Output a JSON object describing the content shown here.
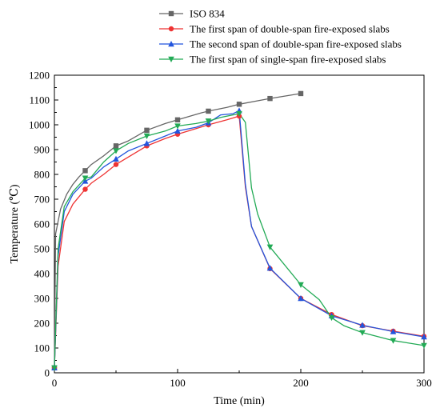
{
  "chart_data": {
    "type": "line",
    "title": "",
    "xlabel": "Time (min)",
    "ylabel": "Temperature (℃)",
    "xlim": [
      0,
      300
    ],
    "ylim": [
      0,
      1200
    ],
    "xticks": [
      0,
      100,
      200,
      300
    ],
    "yticks": [
      0,
      100,
      200,
      300,
      400,
      500,
      600,
      700,
      800,
      900,
      1000,
      1100,
      1200
    ],
    "grid": false,
    "legend_position": "top-right, above plot",
    "series": [
      {
        "name": "ISO 834",
        "color": "#666666",
        "marker": "square",
        "x": [
          0,
          1,
          5,
          10,
          15,
          20,
          25,
          30,
          40,
          50,
          60,
          75,
          90,
          100,
          120,
          125,
          140,
          150,
          175,
          200
        ],
        "y": [
          20,
          560,
          660,
          720,
          760,
          790,
          815,
          840,
          875,
          915,
          935,
          978,
          1005,
          1020,
          1049,
          1055,
          1070,
          1083,
          1106,
          1126
        ],
        "marker_x": [
          0,
          25,
          50,
          75,
          100,
          125,
          150,
          175,
          200
        ],
        "marker_y": [
          20,
          815,
          915,
          978,
          1020,
          1055,
          1083,
          1106,
          1126
        ]
      },
      {
        "name": "The first span of double-span fire-exposed slabs",
        "color": "#ee3333",
        "marker": "circle",
        "x": [
          0,
          3,
          8,
          15,
          25,
          30,
          40,
          50,
          60,
          75,
          90,
          100,
          115,
          125,
          140,
          150,
          155,
          160,
          175,
          200,
          225,
          250,
          275,
          300
        ],
        "y": [
          20,
          430,
          610,
          680,
          740,
          765,
          800,
          840,
          870,
          915,
          945,
          962,
          985,
          1000,
          1020,
          1035,
          750,
          590,
          420,
          300,
          235,
          190,
          168,
          147
        ],
        "marker_x": [
          0,
          25,
          50,
          75,
          100,
          125,
          150,
          175,
          200,
          225,
          250,
          275,
          300
        ],
        "marker_y": [
          20,
          740,
          840,
          915,
          962,
          1000,
          1035,
          420,
          300,
          235,
          190,
          168,
          147
        ]
      },
      {
        "name": "The second span of double-span fire-exposed slabs",
        "color": "#2255dd",
        "marker": "triangle-up",
        "x": [
          0,
          3,
          8,
          15,
          25,
          30,
          40,
          50,
          60,
          75,
          90,
          100,
          115,
          125,
          135,
          145,
          150,
          155,
          160,
          175,
          200,
          225,
          250,
          275,
          300
        ],
        "y": [
          20,
          470,
          650,
          720,
          773,
          785,
          830,
          862,
          895,
          925,
          955,
          975,
          990,
          1008,
          1040,
          1045,
          1057,
          760,
          590,
          422,
          300,
          230,
          192,
          166,
          145
        ],
        "marker_x": [
          0,
          25,
          50,
          75,
          100,
          125,
          150,
          175,
          200,
          225,
          250,
          275,
          300
        ],
        "marker_y": [
          20,
          773,
          862,
          925,
          975,
          1008,
          1057,
          422,
          300,
          230,
          192,
          166,
          145
        ]
      },
      {
        "name": "The first span of single-span fire-exposed slabs",
        "color": "#22aa55",
        "marker": "triangle-down",
        "x": [
          0,
          3,
          8,
          15,
          25,
          30,
          40,
          50,
          60,
          75,
          90,
          100,
          115,
          125,
          135,
          145,
          150,
          155,
          160,
          165,
          175,
          200,
          215,
          225,
          235,
          250,
          275,
          300
        ],
        "y": [
          20,
          500,
          670,
          730,
          785,
          790,
          850,
          895,
          925,
          955,
          975,
          995,
          1005,
          1015,
          1030,
          1040,
          1045,
          1010,
          745,
          640,
          507,
          355,
          295,
          222,
          190,
          162,
          130,
          110
        ],
        "marker_x": [
          0,
          25,
          50,
          75,
          100,
          125,
          150,
          175,
          200,
          225,
          250,
          275,
          300
        ],
        "marker_y": [
          20,
          785,
          895,
          955,
          995,
          1015,
          1045,
          507,
          355,
          222,
          162,
          130,
          110
        ]
      }
    ]
  }
}
